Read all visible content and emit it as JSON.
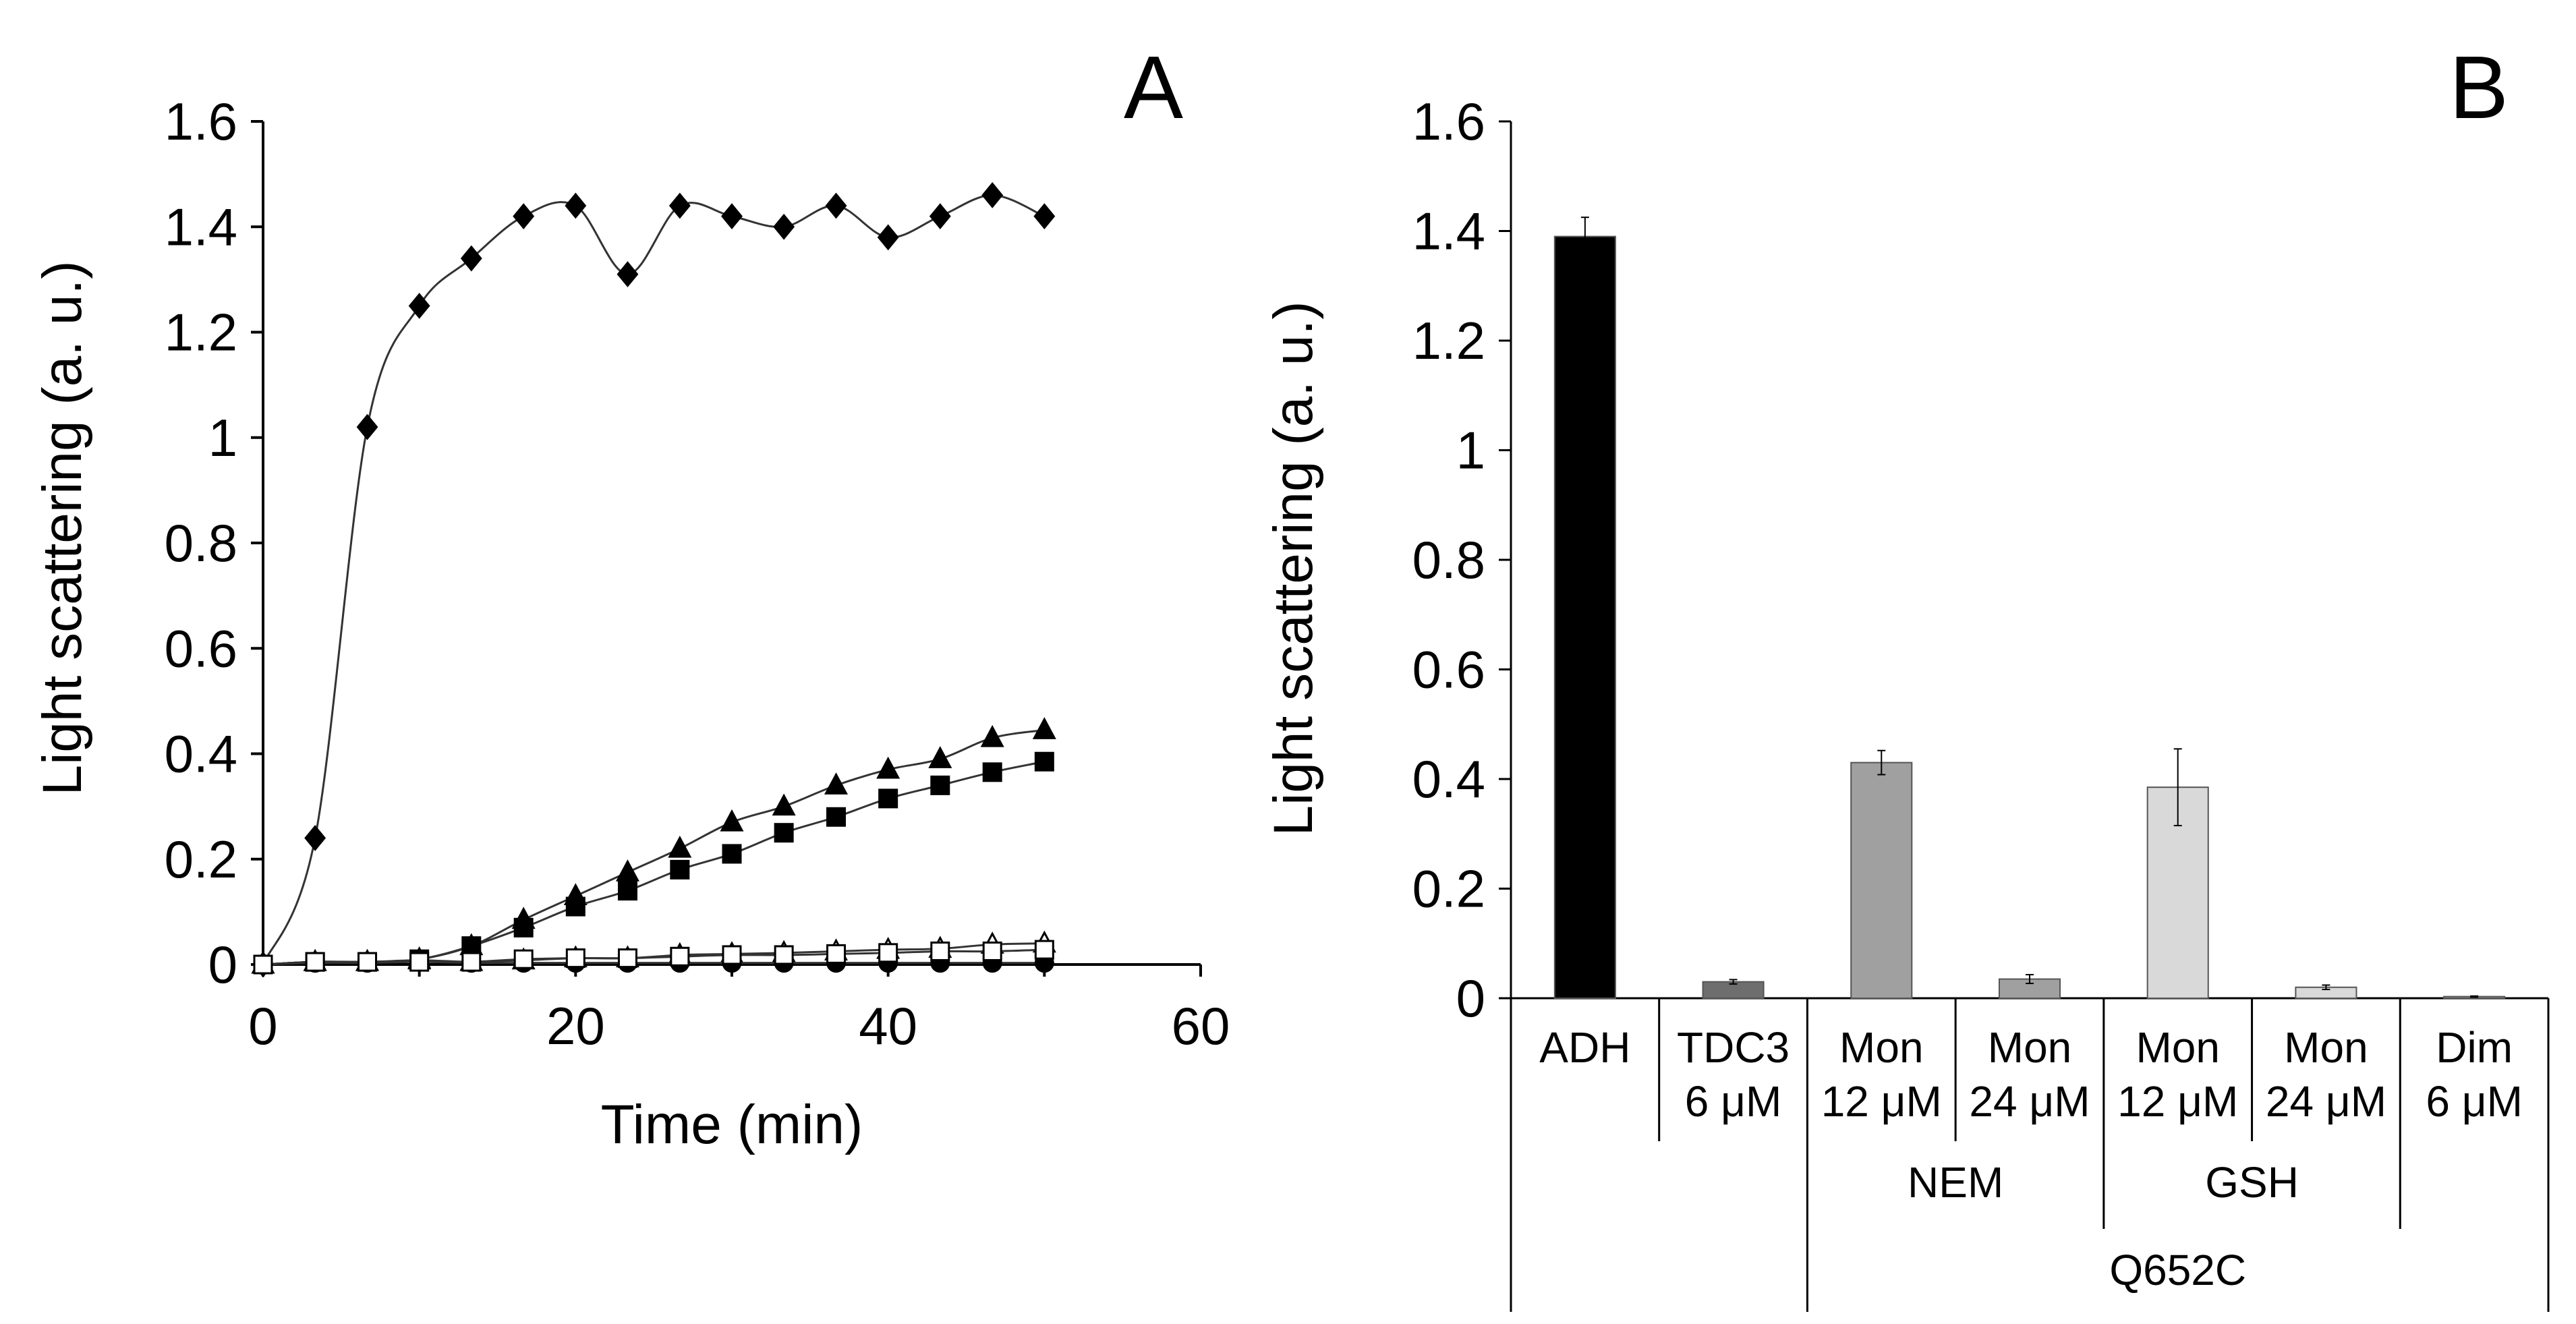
{
  "chart_data": [
    {
      "type": "scatter",
      "panel_label": "A",
      "xlabel": "Time (min)",
      "ylabel": "Light scattering (a. u.)",
      "xlim": [
        0,
        60
      ],
      "ylim": [
        0,
        1.6
      ],
      "xticks": [
        "0",
        "20",
        "40",
        "60"
      ],
      "yticks": [
        "0",
        "0.2",
        "0.4",
        "0.6",
        "0.8",
        "1",
        "1.2",
        "1.4",
        "1.6"
      ],
      "x": [
        0,
        3.33,
        6.67,
        10,
        13.33,
        16.67,
        20,
        23.33,
        26.67,
        30,
        33.33,
        36.67,
        40,
        43.33,
        46.67,
        50
      ],
      "series": [
        {
          "name": "filled-diamond",
          "marker": "diamond",
          "fill": "#000000",
          "values": [
            0,
            0.24,
            1.02,
            1.25,
            1.34,
            1.42,
            1.44,
            1.31,
            1.44,
            1.42,
            1.4,
            1.44,
            1.38,
            1.42,
            1.46,
            1.42
          ]
        },
        {
          "name": "filled-triangle",
          "marker": "triangle",
          "fill": "#000000",
          "values": [
            0,
            0.005,
            0.005,
            0.01,
            0.035,
            0.085,
            0.13,
            0.175,
            0.22,
            0.27,
            0.3,
            0.34,
            0.37,
            0.39,
            0.43,
            0.445
          ]
        },
        {
          "name": "filled-square",
          "marker": "square",
          "fill": "#000000",
          "values": [
            0,
            0.005,
            0.005,
            0.01,
            0.035,
            0.07,
            0.11,
            0.14,
            0.18,
            0.21,
            0.25,
            0.28,
            0.315,
            0.34,
            0.365,
            0.385
          ]
        },
        {
          "name": "open-triangle",
          "marker": "triangle",
          "fill": "#ffffff",
          "values": [
            0,
            0.005,
            0.005,
            0.008,
            0.005,
            0.008,
            0.012,
            0.012,
            0.018,
            0.02,
            0.022,
            0.025,
            0.028,
            0.03,
            0.038,
            0.04
          ]
        },
        {
          "name": "filled-circle",
          "marker": "circle",
          "fill": "#000000",
          "values": [
            0,
            0.003,
            0.003,
            0.005,
            0.003,
            0.003,
            0.003,
            0.003,
            0.003,
            0.003,
            0.003,
            0.003,
            0.003,
            0.003,
            0.003,
            0.003
          ]
        },
        {
          "name": "open-square",
          "marker": "square",
          "fill": "#ffffff",
          "values": [
            0,
            0.005,
            0.005,
            0.005,
            0.005,
            0.01,
            0.012,
            0.012,
            0.015,
            0.018,
            0.018,
            0.02,
            0.022,
            0.025,
            0.025,
            0.028
          ]
        }
      ]
    },
    {
      "type": "bar",
      "panel_label": "B",
      "ylabel": "Light scattering (a. u.)",
      "ylim": [
        0,
        1.6
      ],
      "yticks": [
        "0",
        "0.2",
        "0.4",
        "0.6",
        "0.8",
        "1",
        "1.2",
        "1.4",
        "1.6"
      ],
      "categories": [
        {
          "line1": "ADH",
          "line2": ""
        },
        {
          "line1": "TDC3",
          "line2": "6 μM"
        },
        {
          "line1": "Mon",
          "line2": "12 μM"
        },
        {
          "line1": "Mon",
          "line2": "24 μM"
        },
        {
          "line1": "Mon",
          "line2": "12 μM"
        },
        {
          "line1": "Mon",
          "line2": "24 μM"
        },
        {
          "line1": "Dim",
          "line2": "6 μM"
        }
      ],
      "values": [
        1.39,
        0.03,
        0.43,
        0.035,
        0.385,
        0.02,
        0.003
      ],
      "errors": [
        0.035,
        0.004,
        0.022,
        0.008,
        0.07,
        0.004,
        0.001
      ],
      "colors": [
        "#000000",
        "#6e6e6e",
        "#a0a0a0",
        "#a0a0a0",
        "#d9d9d9",
        "#d9d9d9",
        "#a0a0a0"
      ],
      "groups": [
        {
          "label": "NEM",
          "from": 2,
          "to": 3
        },
        {
          "label": "GSH",
          "from": 4,
          "to": 5
        },
        {
          "label": "Q652C",
          "from": 2,
          "to": 6
        }
      ]
    }
  ]
}
